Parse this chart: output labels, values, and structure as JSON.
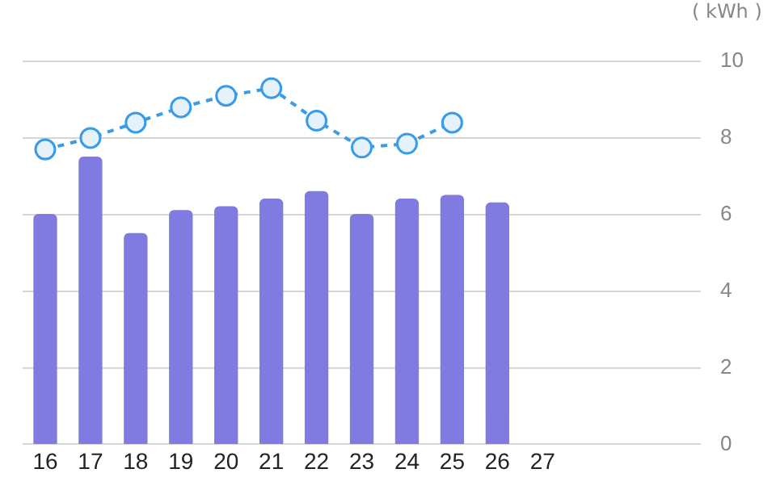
{
  "chart_data": {
    "type": "bar",
    "ylabel": "( kWh )",
    "categories": [
      "16",
      "17",
      "18",
      "19",
      "20",
      "21",
      "22",
      "23",
      "24",
      "25",
      "26",
      "27"
    ],
    "series": [
      {
        "color": "#7f7be0",
        "values": [
          6.0,
          7.5,
          5.5,
          6.1,
          6.2,
          6.4,
          6.6,
          6.0,
          6.4,
          6.5,
          6.3,
          null
        ]
      },
      {
        "type": "line",
        "color": "#3a9be6",
        "line_style": "dashed",
        "marker": "circle",
        "values": [
          7.7,
          8.0,
          8.4,
          8.8,
          9.1,
          9.3,
          8.45,
          7.75,
          7.85,
          8.4,
          null,
          null
        ]
      }
    ],
    "ylim": [
      0,
      10
    ],
    "yticks": [
      0,
      2,
      4,
      6,
      8,
      10
    ],
    "grid": "y",
    "legend": false
  }
}
